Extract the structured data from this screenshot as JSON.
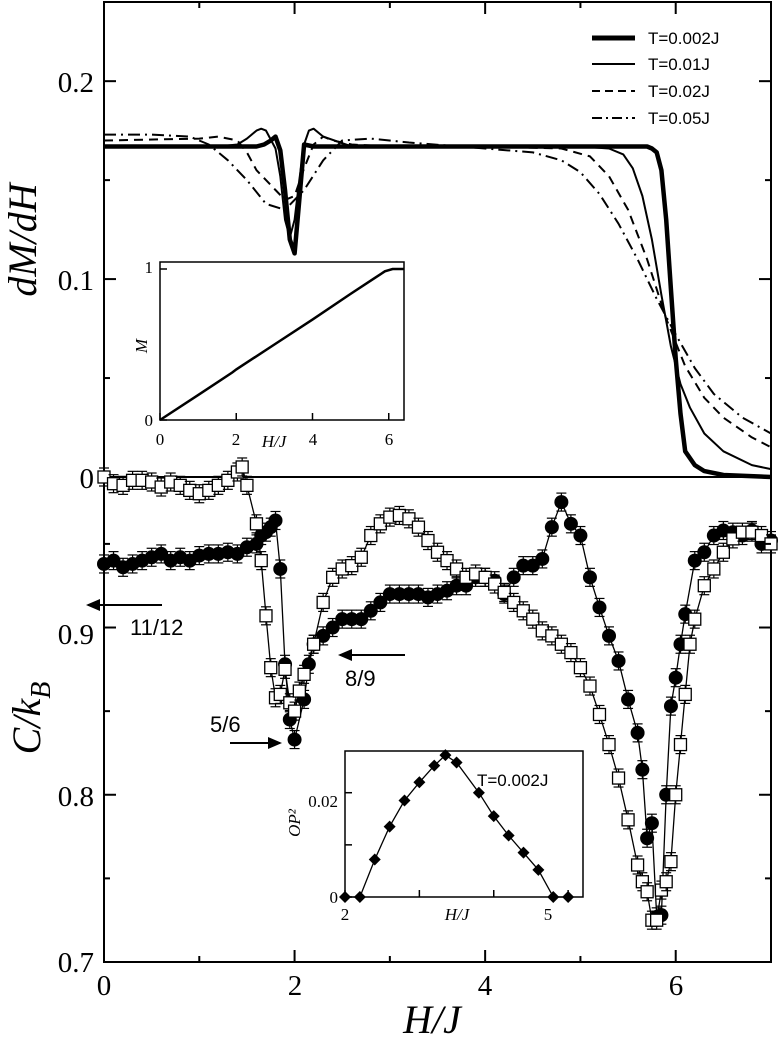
{
  "chart_data": [
    {
      "id": "top",
      "type": "line",
      "xlabel": "",
      "ylabel": "dM/dH",
      "xlim": [
        0,
        7
      ],
      "ylim": [
        0,
        0.24
      ],
      "yticks": [
        "0",
        "0.1",
        "0.2"
      ],
      "legend_position": "top-right",
      "series": [
        {
          "name": "T=0.002J",
          "style": "thick",
          "x": [
            0,
            1.3,
            1.5,
            1.6,
            1.68,
            1.75,
            1.8,
            1.85,
            1.9,
            1.95,
            2.0,
            2.05,
            2.1,
            2.2,
            2.4,
            3,
            4,
            5,
            5.5,
            5.7,
            5.75,
            5.8,
            5.85,
            5.9,
            5.95,
            6.0,
            6.05,
            6.1,
            6.2,
            6.3,
            6.5,
            7
          ],
          "y": [
            0.167,
            0.167,
            0.167,
            0.167,
            0.168,
            0.17,
            0.172,
            0.165,
            0.145,
            0.12,
            0.113,
            0.14,
            0.168,
            0.167,
            0.167,
            0.167,
            0.167,
            0.167,
            0.167,
            0.167,
            0.166,
            0.164,
            0.155,
            0.13,
            0.095,
            0.06,
            0.032,
            0.013,
            0.006,
            0.003,
            0.001,
            0
          ]
        },
        {
          "name": "T=0.01J",
          "style": "thin",
          "x": [
            0,
            1.2,
            1.4,
            1.5,
            1.6,
            1.65,
            1.7,
            1.8,
            1.85,
            1.9,
            1.95,
            2.0,
            2.05,
            2.1,
            2.15,
            2.2,
            2.3,
            2.6,
            3,
            4,
            5,
            5.3,
            5.45,
            5.55,
            5.65,
            5.75,
            5.85,
            5.95,
            6.05,
            6.15,
            6.3,
            6.5,
            6.8,
            7
          ],
          "y": [
            0.167,
            0.167,
            0.168,
            0.171,
            0.175,
            0.176,
            0.175,
            0.166,
            0.152,
            0.13,
            0.121,
            0.13,
            0.15,
            0.168,
            0.175,
            0.176,
            0.172,
            0.167,
            0.167,
            0.167,
            0.167,
            0.166,
            0.163,
            0.156,
            0.142,
            0.12,
            0.092,
            0.066,
            0.047,
            0.035,
            0.022,
            0.013,
            0.006,
            0.004
          ]
        },
        {
          "name": "T=0.02J",
          "style": "dashed",
          "x": [
            0,
            1.0,
            1.2,
            1.4,
            1.5,
            1.6,
            1.7,
            1.8,
            1.9,
            2.0,
            2.1,
            2.2,
            2.3,
            2.4,
            2.6,
            3,
            4,
            4.8,
            5.1,
            5.3,
            5.5,
            5.7,
            5.9,
            6.1,
            6.3,
            6.5,
            6.8,
            7
          ],
          "y": [
            0.17,
            0.171,
            0.172,
            0.17,
            0.164,
            0.155,
            0.15,
            0.145,
            0.14,
            0.142,
            0.156,
            0.168,
            0.172,
            0.17,
            0.168,
            0.167,
            0.167,
            0.166,
            0.162,
            0.152,
            0.135,
            0.11,
            0.08,
            0.056,
            0.04,
            0.03,
            0.02,
            0.015
          ]
        },
        {
          "name": "T=0.05J",
          "style": "dashdot",
          "x": [
            0,
            0.5,
            0.9,
            1.1,
            1.3,
            1.5,
            1.7,
            1.9,
            2.1,
            2.3,
            2.5,
            2.8,
            3.2,
            4,
            4.5,
            4.8,
            5.0,
            5.2,
            5.4,
            5.6,
            5.8,
            6.0,
            6.2,
            6.4,
            6.7,
            7
          ],
          "y": [
            0.173,
            0.173,
            0.172,
            0.168,
            0.16,
            0.15,
            0.138,
            0.135,
            0.145,
            0.16,
            0.17,
            0.171,
            0.169,
            0.166,
            0.164,
            0.16,
            0.154,
            0.143,
            0.128,
            0.11,
            0.09,
            0.072,
            0.055,
            0.042,
            0.03,
            0.022
          ]
        }
      ]
    },
    {
      "id": "top-inset",
      "type": "line",
      "xlabel": "H/J",
      "ylabel": "M",
      "xlim": [
        0,
        6.4
      ],
      "ylim": [
        0,
        1
      ],
      "xticks": [
        "0",
        "2",
        "4",
        "6"
      ],
      "yticks": [
        "0",
        "1"
      ],
      "series": [
        {
          "x": [
            0,
            1,
            1.9,
            2.0,
            3,
            4,
            5,
            5.6,
            5.9,
            6.1,
            6.4
          ],
          "y": [
            0,
            0.165,
            0.315,
            0.335,
            0.5,
            0.665,
            0.835,
            0.935,
            0.985,
            1,
            1
          ]
        }
      ]
    },
    {
      "id": "bottom",
      "type": "scatter",
      "xlabel": "H/J",
      "ylabel": "C/k_B",
      "xlim": [
        0,
        7
      ],
      "ylim": [
        0.7,
        0.99
      ],
      "xticks": [
        "0",
        "2",
        "4",
        "6"
      ],
      "yticks": [
        "0.7",
        "0.8",
        "0.9"
      ],
      "series": [
        {
          "marker": "filled-circle",
          "x": [
            0,
            0.1,
            0.2,
            0.3,
            0.4,
            0.5,
            0.6,
            0.7,
            0.8,
            0.9,
            1.0,
            1.1,
            1.2,
            1.3,
            1.4,
            1.5,
            1.6,
            1.65,
            1.7,
            1.75,
            1.8,
            1.85,
            1.9,
            1.95,
            2.0,
            2.1,
            2.15,
            2.2,
            2.3,
            2.4,
            2.5,
            2.6,
            2.7,
            2.8,
            2.9,
            3.0,
            3.1,
            3.2,
            3.3,
            3.4,
            3.5,
            3.6,
            3.7,
            3.8,
            3.9,
            4.0,
            4.1,
            4.2,
            4.3,
            4.4,
            4.5,
            4.6,
            4.7,
            4.8,
            4.9,
            5.0,
            5.1,
            5.2,
            5.3,
            5.4,
            5.5,
            5.6,
            5.65,
            5.7,
            5.75,
            5.8,
            5.85,
            5.9,
            5.95,
            6.0,
            6.05,
            6.1,
            6.2,
            6.3,
            6.4,
            6.5,
            6.6,
            6.7,
            6.8,
            6.9,
            7.0
          ],
          "y": [
            0.938,
            0.94,
            0.936,
            0.938,
            0.94,
            0.942,
            0.944,
            0.94,
            0.942,
            0.94,
            0.943,
            0.944,
            0.944,
            0.945,
            0.944,
            0.948,
            0.95,
            0.955,
            0.957,
            0.96,
            0.964,
            0.935,
            0.878,
            0.845,
            0.833,
            0.857,
            0.878,
            0.89,
            0.895,
            0.9,
            0.905,
            0.905,
            0.905,
            0.91,
            0.915,
            0.92,
            0.92,
            0.92,
            0.92,
            0.918,
            0.92,
            0.922,
            0.925,
            0.925,
            0.93,
            0.93,
            0.928,
            0.92,
            0.93,
            0.937,
            0.937,
            0.941,
            0.96,
            0.975,
            0.962,
            0.955,
            0.93,
            0.912,
            0.895,
            0.88,
            0.857,
            0.837,
            0.815,
            0.774,
            0.783,
            0.727,
            0.728,
            0.8,
            0.853,
            0.87,
            0.89,
            0.908,
            0.94,
            0.945,
            0.955,
            0.958,
            0.957,
            0.955,
            0.958,
            0.95,
            0.952
          ]
        },
        {
          "marker": "open-square",
          "x": [
            0,
            0.1,
            0.2,
            0.3,
            0.4,
            0.5,
            0.6,
            0.7,
            0.8,
            0.9,
            1.0,
            1.1,
            1.2,
            1.3,
            1.4,
            1.45,
            1.5,
            1.6,
            1.65,
            1.7,
            1.75,
            1.8,
            1.85,
            1.9,
            1.95,
            2.0,
            2.05,
            2.1,
            2.2,
            2.3,
            2.4,
            2.5,
            2.6,
            2.7,
            2.8,
            2.9,
            3.0,
            3.1,
            3.2,
            3.3,
            3.4,
            3.5,
            3.6,
            3.7,
            3.8,
            3.9,
            4.0,
            4.1,
            4.2,
            4.3,
            4.4,
            4.5,
            4.6,
            4.7,
            4.8,
            4.9,
            5.0,
            5.1,
            5.2,
            5.3,
            5.4,
            5.5,
            5.6,
            5.65,
            5.7,
            5.75,
            5.8,
            5.85,
            5.9,
            5.95,
            6.0,
            6.05,
            6.1,
            6.15,
            6.2,
            6.3,
            6.4,
            6.5,
            6.6,
            6.7,
            6.8,
            6.9,
            7.0
          ],
          "y": [
            0.99,
            0.986,
            0.985,
            0.988,
            0.988,
            0.987,
            0.984,
            0.987,
            0.985,
            0.982,
            0.98,
            0.982,
            0.985,
            0.988,
            0.993,
            0.996,
            0.985,
            0.962,
            0.94,
            0.907,
            0.876,
            0.858,
            0.86,
            0.875,
            0.855,
            0.85,
            0.862,
            0.872,
            0.89,
            0.915,
            0.93,
            0.935,
            0.937,
            0.942,
            0.955,
            0.962,
            0.966,
            0.967,
            0.965,
            0.96,
            0.952,
            0.945,
            0.94,
            0.935,
            0.93,
            0.932,
            0.93,
            0.926,
            0.921,
            0.915,
            0.91,
            0.905,
            0.898,
            0.895,
            0.89,
            0.885,
            0.876,
            0.865,
            0.848,
            0.83,
            0.81,
            0.785,
            0.758,
            0.748,
            0.742,
            0.725,
            0.725,
            0.743,
            0.748,
            0.76,
            0.8,
            0.83,
            0.86,
            0.89,
            0.905,
            0.925,
            0.935,
            0.945,
            0.953,
            0.957,
            0.957,
            0.955,
            0.95
          ]
        }
      ],
      "annotations": [
        "11/12",
        "8/9",
        "5/6"
      ]
    },
    {
      "id": "bottom-inset",
      "type": "line",
      "xlabel": "H/J",
      "ylabel": "OP²",
      "legend": "T=0.002J",
      "xlim": [
        2,
        5.2
      ],
      "ylim": [
        0,
        0.028
      ],
      "xticks": [
        "2",
        "5"
      ],
      "yticks": [
        "0",
        "0.02"
      ],
      "series": [
        {
          "marker": "diamond",
          "x": [
            2.0,
            2.2,
            2.4,
            2.6,
            2.8,
            3.0,
            3.2,
            3.35,
            3.5,
            3.8,
            4.0,
            4.2,
            4.4,
            4.6,
            4.8,
            5.0
          ],
          "y": [
            0,
            0,
            0.0072,
            0.0135,
            0.0185,
            0.022,
            0.0252,
            0.0272,
            0.0258,
            0.02,
            0.0155,
            0.0118,
            0.0085,
            0.0052,
            0,
            0
          ]
        }
      ]
    }
  ]
}
